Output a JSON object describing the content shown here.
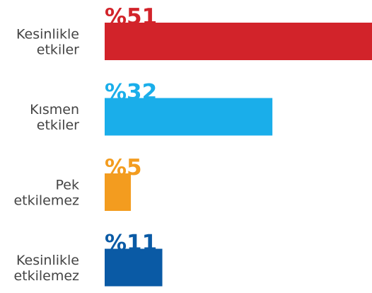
{
  "chart_data": {
    "type": "bar",
    "categories": [
      [
        "Kesinlikle",
        "etkiler"
      ],
      [
        "Kısmen",
        "etkiler"
      ],
      [
        "Pek",
        "etkilemez"
      ],
      [
        "Kesinlikle",
        "etkilemez"
      ]
    ],
    "values": [
      51,
      32,
      5,
      11
    ],
    "value_labels": [
      "%51",
      "%32",
      "%5",
      "%11"
    ],
    "colors": [
      "#d2232a",
      "#1aaeea",
      "#f39c1f",
      "#0a5aa5"
    ]
  }
}
